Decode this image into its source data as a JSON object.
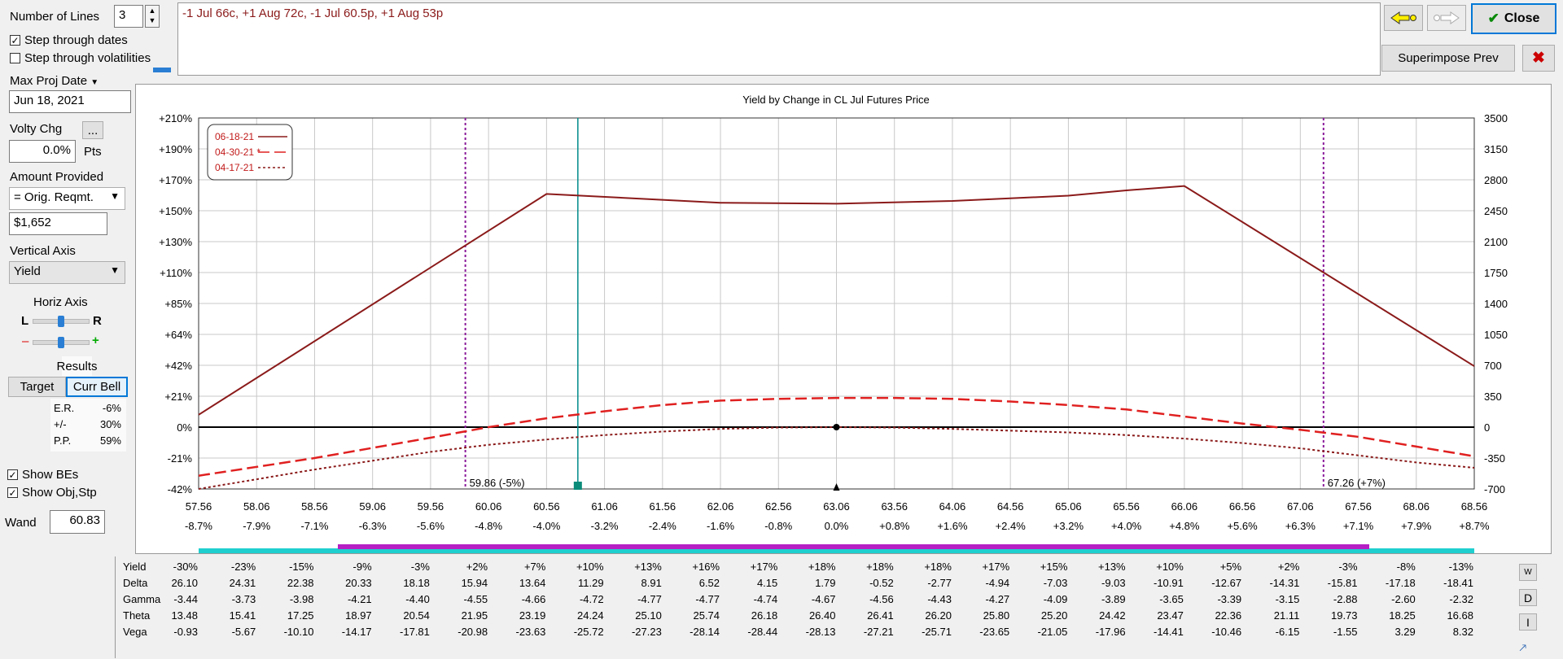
{
  "controls": {
    "number_of_lines_label": "Number of Lines",
    "number_of_lines_value": "3",
    "step_dates_label": "Step through dates",
    "step_dates_checked": true,
    "step_vols_label": "Step through volatilities",
    "step_vols_checked": false,
    "max_proj_date_label": "Max Proj Date",
    "max_proj_date_value": "Jun 18, 2021",
    "volty_chg_label": "Volty Chg",
    "volty_chg_ellipsis": "...",
    "volty_chg_value": "0.0%",
    "volty_chg_unit": "Pts",
    "amount_provided_label": "Amount Provided",
    "amount_provided_select": "= Orig. Reqmt.",
    "amount_value": "$1,652",
    "vertical_axis_label": "Vertical Axis",
    "vertical_axis_select": "Yield",
    "horiz_axis_label": "Horiz Axis",
    "horiz_l": "L",
    "horiz_r": "R",
    "minus": "–",
    "plus": "+",
    "results_label": "Results",
    "target_button": "Target",
    "curr_bell_button": "Curr Bell",
    "results": [
      {
        "k": "E.R.",
        "v": "-6%"
      },
      {
        "k": "+/-",
        "v": "30%"
      },
      {
        "k": "P.P.",
        "v": "59%"
      }
    ],
    "show_bes_label": "Show BEs",
    "show_bes_checked": true,
    "show_obj_label": "Show Obj,Stp",
    "show_obj_checked": true,
    "wand_label": "Wand",
    "wand_value": "60.83"
  },
  "strategy_text": "-1 Jul 66c, +1 Aug 72c, -1 Jul 60.5p, +1 Aug 53p",
  "toolbar": {
    "close_label": "Close",
    "superimpose_label": "Superimpose Prev",
    "check_glyph": "✔",
    "x_glyph": "✖"
  },
  "chart_data": {
    "type": "line",
    "title": "Yield by Change in CL Jul Futures Price",
    "x_ticks": [
      "57.56",
      "58.06",
      "58.56",
      "59.06",
      "59.56",
      "60.06",
      "60.56",
      "61.06",
      "61.56",
      "62.06",
      "62.56",
      "63.06",
      "63.56",
      "64.06",
      "64.56",
      "65.06",
      "65.56",
      "66.06",
      "66.56",
      "67.06",
      "67.56",
      "68.06",
      "68.56"
    ],
    "x_pct_ticks": [
      "-8.7%",
      "-7.9%",
      "-7.1%",
      "-6.3%",
      "-5.6%",
      "-4.8%",
      "-4.0%",
      "-3.2%",
      "-2.4%",
      "-1.6%",
      "-0.8%",
      "0.0%",
      "+0.8%",
      "+1.6%",
      "+2.4%",
      "+3.2%",
      "+4.0%",
      "+4.8%",
      "+5.6%",
      "+6.3%",
      "+7.1%",
      "+7.9%",
      "+8.7%"
    ],
    "y_left_ticks": [
      "+210%",
      "+190%",
      "+170%",
      "+150%",
      "+130%",
      "+110%",
      "+85%",
      "+64%",
      "+42%",
      "+21%",
      "0%",
      "-21%",
      "-42%"
    ],
    "y_right_ticks": [
      "3500",
      "3150",
      "2800",
      "2450",
      "2100",
      "1750",
      "1400",
      "1050",
      "700",
      "350",
      "0",
      "-350",
      "-700"
    ],
    "ylim_dollars": [
      -700,
      3500
    ],
    "xlim": [
      57.56,
      68.56
    ],
    "legend": [
      {
        "name": "06-18-21",
        "style": "solid"
      },
      {
        "name": "04-30-21 *",
        "style": "dashed"
      },
      {
        "name": "04-17-21",
        "style": "dotted"
      }
    ],
    "series": [
      {
        "name": "06-18-21",
        "color": "#8b1a1a",
        "style": "solid",
        "x": [
          57.56,
          60.56,
          62.06,
          63.06,
          64.06,
          65.06,
          65.56,
          66.06,
          68.56
        ],
        "y": [
          140,
          2640,
          2540,
          2530,
          2560,
          2620,
          2680,
          2730,
          690
        ]
      },
      {
        "name": "04-30-21 *",
        "color": "#e02020",
        "style": "dashed",
        "x": [
          57.56,
          58.56,
          59.56,
          60.06,
          60.56,
          61.06,
          61.56,
          62.06,
          62.56,
          63.06,
          63.56,
          64.06,
          64.56,
          65.06,
          65.56,
          66.06,
          66.56,
          67.06,
          67.56,
          68.06,
          68.56
        ],
        "y": [
          -550,
          -350,
          -120,
          0,
          100,
          180,
          250,
          300,
          320,
          330,
          330,
          320,
          290,
          250,
          200,
          120,
          40,
          -30,
          -110,
          -220,
          -330
        ]
      },
      {
        "name": "04-17-21",
        "color": "#8b1a1a",
        "style": "dotted",
        "x": [
          57.56,
          58.56,
          59.56,
          60.06,
          60.56,
          61.06,
          61.56,
          62.06,
          62.56,
          63.06,
          63.56,
          64.06,
          64.56,
          65.06,
          65.56,
          66.06,
          66.56,
          67.06,
          67.56,
          68.06,
          68.56
        ],
        "y": [
          -700,
          -480,
          -280,
          -200,
          -140,
          -90,
          -50,
          -20,
          -5,
          0,
          -5,
          -20,
          -40,
          -60,
          -90,
          -130,
          -180,
          -240,
          -320,
          -400,
          -460
        ]
      }
    ],
    "break_evens": [
      {
        "x": 59.86,
        "label": "59.86 (-5%)"
      },
      {
        "x": 67.26,
        "label": "67.26 (+7%)"
      }
    ],
    "wand_x": 60.83,
    "center_x": 63.06
  },
  "greeks": {
    "row_labels": [
      "Yield",
      "Delta",
      "Gamma",
      "Theta",
      "Vega"
    ],
    "columns": [
      [
        "-30%",
        "26.10",
        "-3.44",
        "13.48",
        "-0.93"
      ],
      [
        "-23%",
        "24.31",
        "-3.73",
        "15.41",
        "-5.67"
      ],
      [
        "-15%",
        "22.38",
        "-3.98",
        "17.25",
        "-10.10"
      ],
      [
        "-9%",
        "20.33",
        "-4.21",
        "18.97",
        "-14.17"
      ],
      [
        "-3%",
        "18.18",
        "-4.40",
        "20.54",
        "-17.81"
      ],
      [
        "+2%",
        "15.94",
        "-4.55",
        "21.95",
        "-20.98"
      ],
      [
        "+7%",
        "13.64",
        "-4.66",
        "23.19",
        "-23.63"
      ],
      [
        "+10%",
        "11.29",
        "-4.72",
        "24.24",
        "-25.72"
      ],
      [
        "+13%",
        "8.91",
        "-4.77",
        "25.10",
        "-27.23"
      ],
      [
        "+16%",
        "6.52",
        "-4.77",
        "25.74",
        "-28.14"
      ],
      [
        "+17%",
        "4.15",
        "-4.74",
        "26.18",
        "-28.44"
      ],
      [
        "+18%",
        "1.79",
        "-4.67",
        "26.40",
        "-28.13"
      ],
      [
        "+18%",
        "-0.52",
        "-4.56",
        "26.41",
        "-27.21"
      ],
      [
        "+18%",
        "-2.77",
        "-4.43",
        "26.20",
        "-25.71"
      ],
      [
        "+17%",
        "-4.94",
        "-4.27",
        "25.80",
        "-23.65"
      ],
      [
        "+15%",
        "-7.03",
        "-4.09",
        "25.20",
        "-21.05"
      ],
      [
        "+13%",
        "-9.03",
        "-3.89",
        "24.42",
        "-17.96"
      ],
      [
        "+10%",
        "-10.91",
        "-3.65",
        "23.47",
        "-14.41"
      ],
      [
        "+5%",
        "-12.67",
        "-3.39",
        "22.36",
        "-10.46"
      ],
      [
        "+2%",
        "-14.31",
        "-3.15",
        "21.11",
        "-6.15"
      ],
      [
        "-3%",
        "-15.81",
        "-2.88",
        "19.73",
        "-1.55"
      ],
      [
        "-8%",
        "-17.18",
        "-2.60",
        "18.25",
        "3.29"
      ],
      [
        "-13%",
        "-18.41",
        "-2.32",
        "16.68",
        "8.32"
      ]
    ],
    "side_buttons": [
      "W",
      "D",
      "I"
    ]
  }
}
